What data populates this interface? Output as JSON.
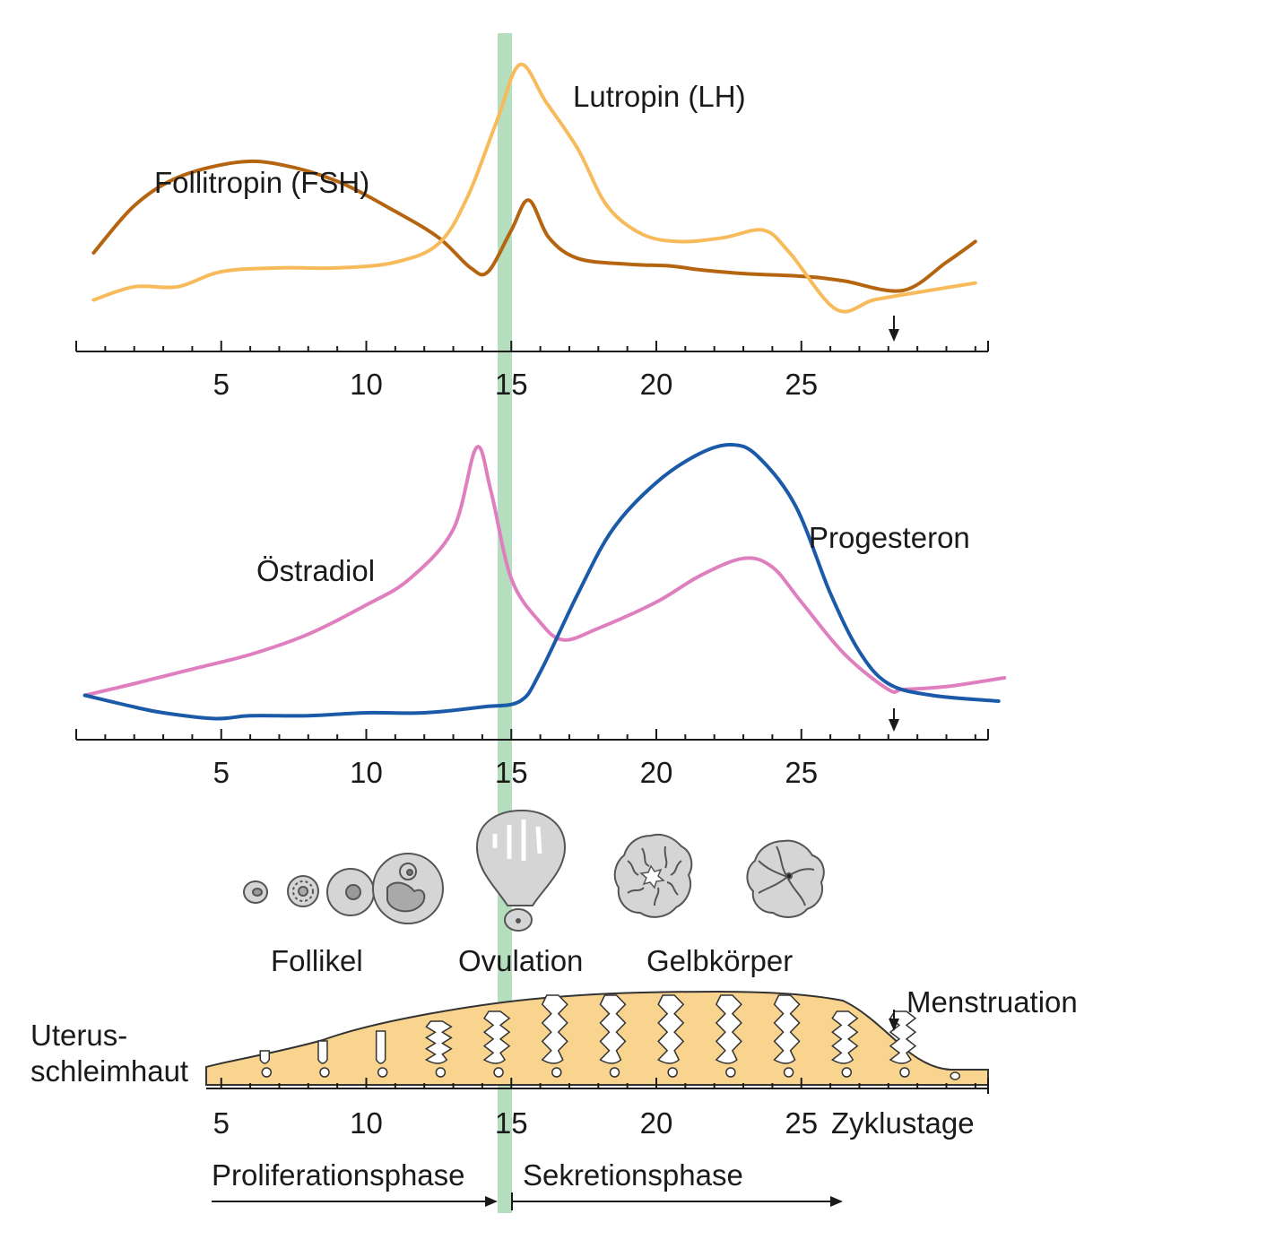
{
  "colors": {
    "fsh": "#b5650f",
    "lh": "#f7bb5c",
    "estradiol": "#df7fbf",
    "progesterone": "#1a5aa8",
    "ovulation_band": "#a8d8b4",
    "endometrium": "#f9d48f",
    "structure_fill": "#d5d5d5",
    "structure_stroke": "#555555"
  },
  "icons": [
    "follicle-icon",
    "ovulation-follicle-icon",
    "corpus-luteum-icon",
    "corpus-albicans-icon"
  ],
  "labels": {
    "fsh": "Follitropin (FSH)",
    "lh": "Lutropin (LH)",
    "estradiol": "Östradiol",
    "progesterone": "Progesteron",
    "follicle": "Follikel",
    "ovulation": "Ovulation",
    "corpus_luteum": "Gelbkörper",
    "uterus_line1": "Uterus-",
    "uterus_line2": "schleimhaut",
    "menstruation": "Menstruation",
    "cycle_days": "Zyklustage",
    "proliferation": "Proliferationsphase",
    "secretion": "Sekretionsphase"
  },
  "axis_ticks": [
    "5",
    "10",
    "15",
    "20",
    "25"
  ],
  "cycle": {
    "tick_days": [
      5,
      10,
      15,
      20,
      25
    ],
    "ovulation_day": 15,
    "menstruation_day": 28.5,
    "secretion_end_day": 27
  },
  "chart_data": [
    {
      "type": "line",
      "x_range": [
        0,
        32
      ],
      "series": [
        {
          "name": "Follitropin (FSH)",
          "points": [
            [
              0.6,
              0.3
            ],
            [
              2,
              0.55
            ],
            [
              3.5,
              0.7
            ],
            [
              5.5,
              0.78
            ],
            [
              7,
              0.77
            ],
            [
              9,
              0.68
            ],
            [
              11,
              0.52
            ],
            [
              12.5,
              0.38
            ],
            [
              13.6,
              0.22
            ],
            [
              14.2,
              0.2
            ],
            [
              15,
              0.42
            ],
            [
              15.6,
              0.58
            ],
            [
              16.3,
              0.38
            ],
            [
              17.3,
              0.27
            ],
            [
              19,
              0.24
            ],
            [
              20.5,
              0.23
            ],
            [
              21.5,
              0.21
            ],
            [
              23,
              0.19
            ],
            [
              24.5,
              0.18
            ],
            [
              25.5,
              0.17
            ],
            [
              26.5,
              0.15
            ],
            [
              28.5,
              0.1
            ],
            [
              30,
              0.25
            ],
            [
              31,
              0.36
            ]
          ]
        },
        {
          "name": "Lutropin (LH)",
          "points": [
            [
              0.6,
              0.05
            ],
            [
              2,
              0.12
            ],
            [
              3.5,
              0.12
            ],
            [
              5,
              0.2
            ],
            [
              7,
              0.22
            ],
            [
              9,
              0.22
            ],
            [
              11,
              0.25
            ],
            [
              12.5,
              0.35
            ],
            [
              13.5,
              0.6
            ],
            [
              14.5,
              1.0
            ],
            [
              15.3,
              1.3
            ],
            [
              16.2,
              1.1
            ],
            [
              17.3,
              0.85
            ],
            [
              18.3,
              0.55
            ],
            [
              19.5,
              0.4
            ],
            [
              20.8,
              0.36
            ],
            [
              22.3,
              0.38
            ],
            [
              23.7,
              0.42
            ],
            [
              24.6,
              0.3
            ],
            [
              26.2,
              0.0
            ],
            [
              27.5,
              0.05
            ],
            [
              29,
              0.09
            ],
            [
              31,
              0.14
            ]
          ]
        }
      ]
    },
    {
      "type": "line",
      "x_range": [
        0,
        32
      ],
      "series": [
        {
          "name": "Östradiol",
          "points": [
            [
              0.3,
              0.1
            ],
            [
              2,
              0.14
            ],
            [
              4,
              0.19
            ],
            [
              6,
              0.24
            ],
            [
              8,
              0.31
            ],
            [
              10,
              0.41
            ],
            [
              11.5,
              0.5
            ],
            [
              13,
              0.67
            ],
            [
              13.8,
              0.95
            ],
            [
              14.3,
              0.8
            ],
            [
              15,
              0.5
            ],
            [
              16,
              0.35
            ],
            [
              16.8,
              0.29
            ],
            [
              18,
              0.33
            ],
            [
              20,
              0.42
            ],
            [
              21.5,
              0.51
            ],
            [
              23,
              0.57
            ],
            [
              24,
              0.54
            ],
            [
              25,
              0.42
            ],
            [
              26.5,
              0.24
            ],
            [
              28,
              0.12
            ],
            [
              28.5,
              0.12
            ],
            [
              30,
              0.13
            ],
            [
              32,
              0.16
            ]
          ]
        },
        {
          "name": "Progesteron",
          "points": [
            [
              0.3,
              0.1
            ],
            [
              2,
              0.06
            ],
            [
              3,
              0.04
            ],
            [
              4.8,
              0.02
            ],
            [
              6,
              0.03
            ],
            [
              8,
              0.03
            ],
            [
              10,
              0.04
            ],
            [
              12,
              0.04
            ],
            [
              14,
              0.06
            ],
            [
              15.3,
              0.08
            ],
            [
              16,
              0.18
            ],
            [
              17.3,
              0.45
            ],
            [
              18.5,
              0.67
            ],
            [
              20,
              0.83
            ],
            [
              21.5,
              0.93
            ],
            [
              22.6,
              0.96
            ],
            [
              23.5,
              0.92
            ],
            [
              24.8,
              0.75
            ],
            [
              26,
              0.45
            ],
            [
              27,
              0.25
            ],
            [
              28,
              0.14
            ],
            [
              29.5,
              0.1
            ],
            [
              31.8,
              0.08
            ]
          ]
        }
      ]
    }
  ]
}
